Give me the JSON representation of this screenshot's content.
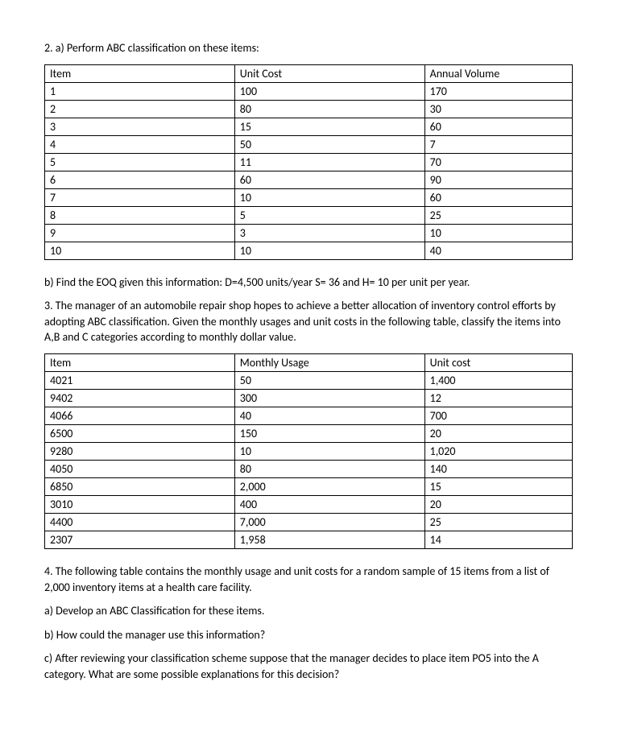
{
  "q2a_title": "2. a) Perform ABC classification on these items:",
  "table1": {
    "headers": [
      "Item",
      "Unit Cost",
      "Annual Volume"
    ],
    "rows": [
      [
        "1",
        "100",
        "170"
      ],
      [
        "2",
        "80",
        "30"
      ],
      [
        "3",
        "15",
        "60"
      ],
      [
        "4",
        "50",
        "7"
      ],
      [
        "5",
        "11",
        "70"
      ],
      [
        "6",
        "60",
        "90"
      ],
      [
        "7",
        "10",
        "60"
      ],
      [
        "8",
        "5",
        "25"
      ],
      [
        "9",
        "3",
        "10"
      ],
      [
        "10",
        "10",
        "40"
      ]
    ]
  },
  "q2b": "b) Find the EOQ given this information: D=4,500 units/year  S= 36 and H= 10 per unit per year.",
  "q3": "3. The manager of an automobile repair shop hopes to achieve a better allocation of inventory control efforts by adopting ABC classification. Given the monthly usages and unit costs in the following table, classify the items into A,B and C categories according to monthly dollar value.",
  "table2": {
    "headers": [
      "Item",
      "Monthly Usage",
      "Unit cost"
    ],
    "rows": [
      [
        "4021",
        "50",
        "1,400"
      ],
      [
        "9402",
        "300",
        "12"
      ],
      [
        "4066",
        "40",
        "700"
      ],
      [
        "6500",
        "150",
        "20"
      ],
      [
        "9280",
        "10",
        "1,020"
      ],
      [
        "4050",
        "80",
        "140"
      ],
      [
        "6850",
        "2,000",
        "15"
      ],
      [
        "3010",
        "400",
        "20"
      ],
      [
        "4400",
        "7,000",
        "25"
      ],
      [
        "2307",
        "1,958",
        "14"
      ]
    ]
  },
  "q4": "4. The following table contains the monthly usage and unit costs for a random sample of 15 items from a list of 2,000 inventory items at a health care facility.",
  "q4a": "a) Develop an ABC Classification for these items.",
  "q4b": "b) How could the manager use this information?",
  "q4c": "c) After reviewing your classification scheme suppose that the manager decides to place item PO5 into the A category. What are some possible explanations for this decision?"
}
